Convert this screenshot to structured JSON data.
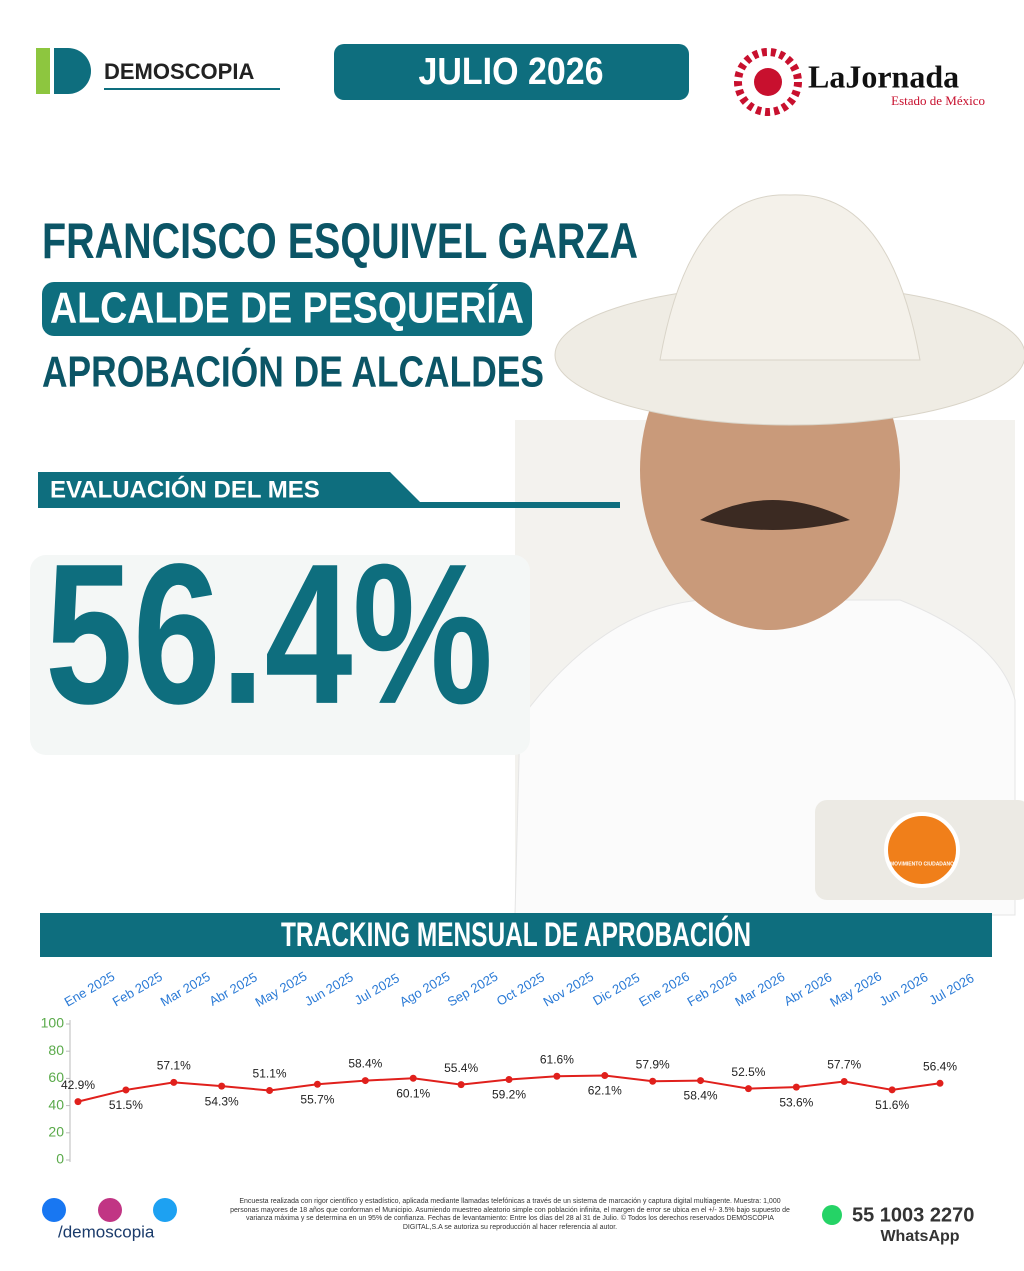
{
  "header": {
    "brand": "DEMOSCOPIA",
    "date": "JULIO 2026",
    "partner": "LaJornada",
    "partner_sub": "Estado de México"
  },
  "headline": {
    "name": "FRANCISCO ESQUIVEL GARZA",
    "role": "ALCALDE DE PESQUERÍA",
    "subtitle": "APROBACIÓN DE ALCALDES",
    "label": "EVALUACIÓN DEL MES",
    "value": "56.4%"
  },
  "party": "MOVIMIENTO CIUDADANO",
  "chart_data": {
    "type": "line",
    "title": "TRACKING MENSUAL DE APROBACIÓN",
    "categories": [
      "Ene 2025",
      "Feb 2025",
      "Mar 2025",
      "Abr 2025",
      "May 2025",
      "Jun 2025",
      "Jul 2025",
      "Ago 2025",
      "Sep 2025",
      "Oct 2025",
      "Nov 2025",
      "Dic 2025",
      "Ene 2026",
      "Feb 2026",
      "Mar 2026",
      "Abr 2026",
      "May 2026",
      "Jun 2026",
      "Jul 2026"
    ],
    "values": [
      42.9,
      51.5,
      57.1,
      54.3,
      51.1,
      55.7,
      58.4,
      60.1,
      55.4,
      59.2,
      61.6,
      62.1,
      57.9,
      58.4,
      52.5,
      53.6,
      57.7,
      51.6,
      56.4
    ],
    "value_labels": [
      "42.9%",
      "51.5%",
      "57.1%",
      "54.3%",
      "51.1%",
      "55.7%",
      "58.4%",
      "60.1%",
      "55.4%",
      "59.2%",
      "61.6%",
      "62.1%",
      "57.9%",
      "58.4%",
      "52.5%",
      "53.6%",
      "57.7%",
      "51.6%",
      "56.4%"
    ],
    "color": "#e0201c",
    "ylim": [
      0,
      100
    ],
    "yticks": [
      0,
      20,
      40,
      60,
      80,
      100
    ],
    "grid": false
  },
  "footer": {
    "handle": "/demoscopia",
    "note": "Encuesta realizada con rigor científico y estadístico, aplicada mediante llamadas telefónicas a través de un sistema de marcación y captura digital multiagente. Muestra: 1,000 personas mayores de 18 años que conforman el Municipio. Asumiendo muestreo aleatorio simple con población infinita, el margen de error se ubica en el +/- 3.5% bajo supuesto de varianza máxima y se determina en un 95% de confianza. Fechas de levantamiento: Entre los días del 28 al 31 de Julio. © Todos los derechos reservados DEMOSCOPIA DIGITAL,S.A se autoriza su reproducción al hacer referencia al autor.",
    "phone": "55 1003 2270",
    "phone_label": "WhatsApp"
  }
}
